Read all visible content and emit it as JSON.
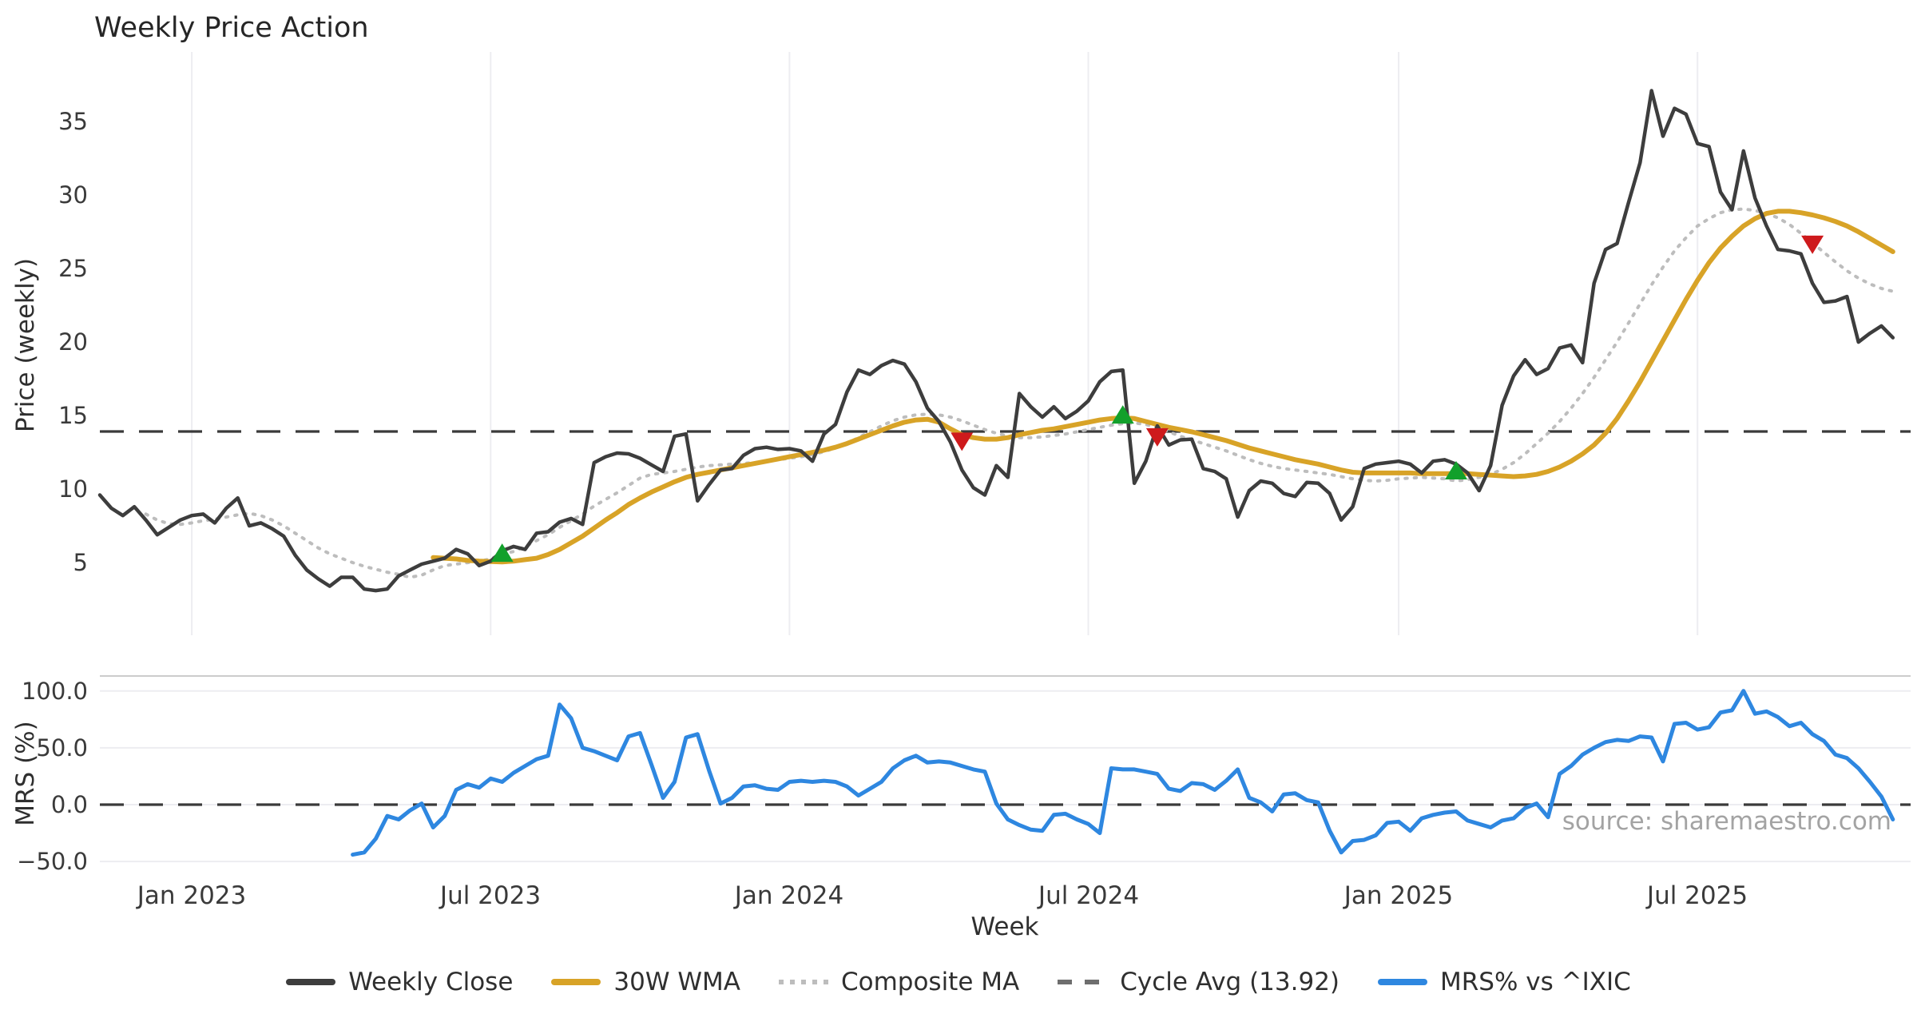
{
  "title": "Weekly Price Action",
  "xlabel": "Week",
  "source_note": "source: sharemaestro.com",
  "colors": {
    "close": "#3d3d3d",
    "wma": "#d8a327",
    "composite": "#bdbdbd",
    "cycle_avg": "#3a3a3a",
    "mrs": "#2e87e0",
    "buy_marker": "#12a02b",
    "sell_marker": "#ce1a1c",
    "gridline": "#ededf1",
    "panel_spine": "#cccccc",
    "background": "#ffffff"
  },
  "legend": [
    {
      "label": "Weekly Close",
      "style": "solid",
      "color": "#3d3d3d"
    },
    {
      "label": "30W WMA",
      "style": "solid",
      "color": "#d8a327"
    },
    {
      "label": "Composite MA",
      "style": "dotted",
      "color": "#bdbdbd"
    },
    {
      "label": "Cycle Avg (13.92)",
      "style": "dashed",
      "color": "#6e6e6e"
    },
    {
      "label": "MRS% vs ^IXIC",
      "style": "solid",
      "color": "#2e87e0"
    }
  ],
  "chart_data": [
    {
      "type": "line",
      "panel": "price",
      "title": "Weekly Price Action",
      "ylabel": "Price (weekly)",
      "x_unit": "weekly index starting Nov 2022",
      "ylim": [
        0.1,
        39.7
      ],
      "grid": "vertical-only",
      "cycle_avg_value": 13.92,
      "xticks": [
        {
          "week": 8,
          "label": "Jan 2023"
        },
        {
          "week": 34,
          "label": "Jul 2023"
        },
        {
          "week": 60,
          "label": "Jan 2024"
        },
        {
          "week": 86,
          "label": "Jul 2024"
        },
        {
          "week": 113,
          "label": "Jan 2025"
        },
        {
          "week": 139,
          "label": "Jul 2025"
        }
      ],
      "yticks": [
        5,
        10,
        15,
        20,
        25,
        30,
        35
      ],
      "ytick_labels": [
        "5",
        "10",
        "15",
        "20",
        "25",
        "30",
        "35"
      ],
      "series": [
        {
          "name": "Weekly Close",
          "color": "#3d3d3d",
          "style": "solid",
          "width": 4.5,
          "start_week": 0,
          "values": [
            9.6,
            8.7,
            8.2,
            8.8,
            7.9,
            6.9,
            7.4,
            7.9,
            8.2,
            8.3,
            7.7,
            8.7,
            9.4,
            7.5,
            7.7,
            7.3,
            6.8,
            5.5,
            4.5,
            3.9,
            3.4,
            4.0,
            4.0,
            3.2,
            3.1,
            3.2,
            4.1,
            4.5,
            4.9,
            5.1,
            5.3,
            5.9,
            5.6,
            4.8,
            5.1,
            5.8,
            6.1,
            5.9,
            7.0,
            7.1,
            7.75,
            8.0,
            7.6,
            11.8,
            12.2,
            12.45,
            12.4,
            12.1,
            11.65,
            11.2,
            13.6,
            13.75,
            9.2,
            10.3,
            11.3,
            11.4,
            12.3,
            12.75,
            12.85,
            12.7,
            12.75,
            12.6,
            11.9,
            13.75,
            14.4,
            16.6,
            18.1,
            17.8,
            18.4,
            18.75,
            18.5,
            17.3,
            15.5,
            14.6,
            13.2,
            11.3,
            10.1,
            9.6,
            11.6,
            10.8,
            16.5,
            15.6,
            14.9,
            15.6,
            14.8,
            15.3,
            16.0,
            17.3,
            18.0,
            18.1,
            10.4,
            11.9,
            14.3,
            13.0,
            13.35,
            13.4,
            11.4,
            11.2,
            10.7,
            8.1,
            9.9,
            10.55,
            10.4,
            9.7,
            9.5,
            10.45,
            10.4,
            9.7,
            7.9,
            8.8,
            11.4,
            11.7,
            11.8,
            11.9,
            11.7,
            11.1,
            11.9,
            12.0,
            11.7,
            11.1,
            9.9,
            11.6,
            15.7,
            17.7,
            18.8,
            17.8,
            18.2,
            19.6,
            19.8,
            18.6,
            24.0,
            26.3,
            26.7,
            29.5,
            32.2,
            37.1,
            34.0,
            35.9,
            35.5,
            33.5,
            33.3,
            30.2,
            29.0,
            33.0,
            29.8,
            27.9,
            26.3,
            26.2,
            26.0,
            24.0,
            22.7,
            22.8,
            23.1,
            20.0,
            20.6,
            21.1,
            20.3
          ]
        },
        {
          "name": "30W WMA",
          "color": "#d8a327",
          "style": "solid",
          "width": 6,
          "start_week": 29,
          "values": [
            5.35,
            5.3,
            5.25,
            5.15,
            5.1,
            5.08,
            5.05,
            5.1,
            5.2,
            5.3,
            5.55,
            5.9,
            6.35,
            6.8,
            7.35,
            7.9,
            8.4,
            8.95,
            9.4,
            9.8,
            10.15,
            10.5,
            10.8,
            11.0,
            11.15,
            11.3,
            11.45,
            11.6,
            11.75,
            11.9,
            12.05,
            12.2,
            12.35,
            12.5,
            12.65,
            12.85,
            13.1,
            13.4,
            13.7,
            14.0,
            14.3,
            14.55,
            14.7,
            14.75,
            14.55,
            14.1,
            13.7,
            13.5,
            13.4,
            13.4,
            13.5,
            13.7,
            13.85,
            14.0,
            14.1,
            14.25,
            14.4,
            14.55,
            14.7,
            14.8,
            14.85,
            14.8,
            14.6,
            14.4,
            14.2,
            14.05,
            13.9,
            13.7,
            13.5,
            13.3,
            13.05,
            12.8,
            12.6,
            12.4,
            12.2,
            12.0,
            11.85,
            11.7,
            11.5,
            11.3,
            11.15,
            11.1,
            11.1,
            11.1,
            11.1,
            11.1,
            11.05,
            11.05,
            11.05,
            11.05,
            11.05,
            11.0,
            10.95,
            10.9,
            10.85,
            10.9,
            11.0,
            11.2,
            11.5,
            11.9,
            12.4,
            13.0,
            13.8,
            14.8,
            16.0,
            17.3,
            18.7,
            20.1,
            21.5,
            22.9,
            24.2,
            25.4,
            26.4,
            27.2,
            27.9,
            28.4,
            28.75,
            28.9,
            28.9,
            28.8,
            28.65,
            28.45,
            28.2,
            27.9,
            27.5,
            27.05,
            26.6,
            26.15
          ]
        },
        {
          "name": "Composite MA",
          "color": "#bdbdbd",
          "style": "dotted",
          "width": 4,
          "start_week": 4,
          "values": [
            8.3,
            7.9,
            7.65,
            7.6,
            7.7,
            7.85,
            7.95,
            8.1,
            8.25,
            8.35,
            8.2,
            7.9,
            7.5,
            7.0,
            6.5,
            6.0,
            5.6,
            5.3,
            5.0,
            4.75,
            4.55,
            4.35,
            4.2,
            4.0,
            4.15,
            4.5,
            4.8,
            4.9,
            5.0,
            5.1,
            5.25,
            5.6,
            5.75,
            6.1,
            6.5,
            6.9,
            7.4,
            7.85,
            8.3,
            8.85,
            9.3,
            9.75,
            10.25,
            10.75,
            11.0,
            11.1,
            11.2,
            11.35,
            11.5,
            11.6,
            11.65,
            11.7,
            11.75,
            11.8,
            11.9,
            12.0,
            12.1,
            12.2,
            12.35,
            12.55,
            12.8,
            13.1,
            13.5,
            13.9,
            14.3,
            14.65,
            14.9,
            15.05,
            15.1,
            15.05,
            14.9,
            14.65,
            14.35,
            14.05,
            13.8,
            13.6,
            13.5,
            13.5,
            13.55,
            13.65,
            13.75,
            13.9,
            14.05,
            14.2,
            14.35,
            14.45,
            14.5,
            14.4,
            14.2,
            13.9,
            13.6,
            13.35,
            13.1,
            12.85,
            12.6,
            12.3,
            12.0,
            11.75,
            11.55,
            11.4,
            11.3,
            11.2,
            11.1,
            11.0,
            10.85,
            10.7,
            10.6,
            10.55,
            10.6,
            10.7,
            10.75,
            10.8,
            10.75,
            10.7,
            10.55,
            10.65,
            10.8,
            11.0,
            11.35,
            11.8,
            12.4,
            13.1,
            13.8,
            14.6,
            15.5,
            16.5,
            17.6,
            18.8,
            20.0,
            21.3,
            22.6,
            23.9,
            25.1,
            26.2,
            27.1,
            27.9,
            28.4,
            28.8,
            29.0,
            29.05,
            28.95,
            28.75,
            28.45,
            28.0,
            27.4,
            26.75,
            26.1,
            25.45,
            24.85,
            24.35,
            23.95,
            23.65,
            23.45
          ]
        },
        {
          "name": "Cycle Avg (13.92)",
          "color": "#3a3a3a",
          "style": "dashed",
          "width": 3.2,
          "hline_value": 13.92
        }
      ],
      "markers": {
        "buy": [
          {
            "week": 35,
            "value": 5.6
          },
          {
            "week": 89,
            "value": 15.0
          },
          {
            "week": 118,
            "value": 11.2
          }
        ],
        "sell": [
          {
            "week": 75,
            "value": 13.3
          },
          {
            "week": 92,
            "value": 13.6
          },
          {
            "week": 149,
            "value": 26.7
          }
        ]
      }
    },
    {
      "type": "line",
      "panel": "mrs",
      "ylabel": "MRS (%)",
      "ylim": [
        -62,
        113
      ],
      "grid": "horizontal-only",
      "zero_line": "dashed",
      "yticks": [
        100,
        50,
        0,
        -50
      ],
      "ytick_labels": [
        "100.0",
        "50.0",
        "0.0",
        "−50.0"
      ],
      "series": [
        {
          "name": "MRS% vs ^IXIC",
          "color": "#2e87e0",
          "style": "solid",
          "width": 5,
          "start_week": 22,
          "values": [
            -44,
            -42,
            -30,
            -10,
            -13,
            -5,
            1,
            -20,
            -10,
            13,
            18,
            15,
            23,
            20,
            28,
            34,
            40,
            43,
            88,
            76,
            50,
            47,
            43,
            39,
            60,
            63,
            35,
            6,
            20,
            59,
            62,
            30,
            1,
            6,
            16,
            17,
            14,
            13,
            20,
            21,
            20,
            21,
            20,
            16,
            8,
            14,
            20,
            32,
            39,
            43,
            37,
            38,
            37,
            34,
            31,
            29,
            1,
            -13,
            -18,
            -22,
            -23,
            -9,
            -8,
            -13,
            -17,
            -25,
            32,
            31,
            31,
            29,
            27,
            14,
            12,
            19,
            18,
            13,
            21,
            31,
            6,
            2,
            -6,
            9,
            10,
            4,
            2,
            -23,
            -42,
            -32,
            -31,
            -27,
            -16,
            -15,
            -23,
            -12,
            -9,
            -7,
            -6,
            -14,
            -17,
            -20,
            -14,
            -12,
            -3,
            1,
            -11,
            27,
            34,
            44,
            50,
            55,
            57,
            56,
            60,
            59,
            38,
            71,
            72,
            66,
            68,
            81,
            83,
            100,
            80,
            82,
            77,
            69,
            72,
            62,
            56,
            44,
            41,
            32,
            20,
            7,
            -13
          ]
        }
      ]
    }
  ]
}
